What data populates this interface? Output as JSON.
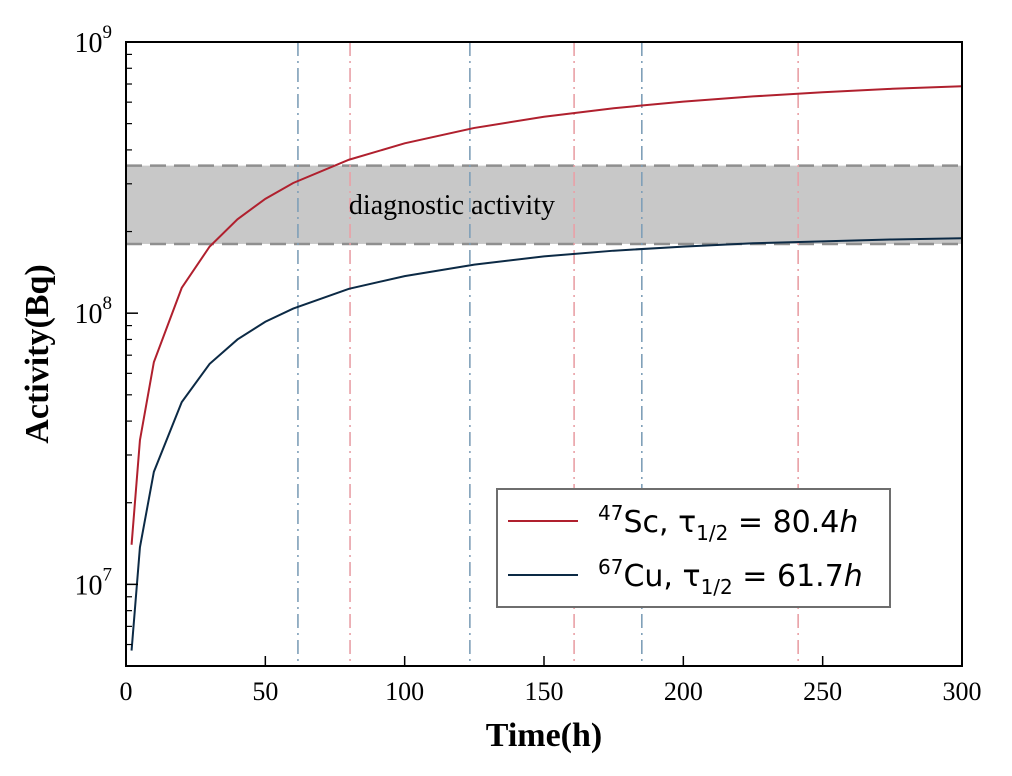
{
  "chart_data": {
    "type": "line",
    "xlabel": "Time(h)",
    "ylabel": "Activity(Bq)",
    "xlim": [
      0,
      300
    ],
    "ylim": [
      5000000,
      1000000000
    ],
    "y_scale": "log",
    "x_ticks": [
      0,
      50,
      100,
      150,
      200,
      250,
      300
    ],
    "x_tick_labels": [
      "0",
      "50",
      "100",
      "150",
      "200",
      "250",
      "300"
    ],
    "y_ticks": [
      {
        "value": 10000000,
        "base": "10",
        "exp": "7"
      },
      {
        "value": 100000000,
        "base": "10",
        "exp": "8"
      },
      {
        "value": 1000000000,
        "base": "10",
        "exp": "9"
      }
    ],
    "band": {
      "label": "diagnostic activity",
      "y_low": 180000000,
      "y_high": 350000000,
      "color": "#c8c8c8"
    },
    "series": [
      {
        "nuclide_mass": "47",
        "nuclide_symbol": "Sc",
        "half_life_label": "80.4",
        "half_life_h": 80.4,
        "color": "#b0202e",
        "x": [
          2,
          5,
          10,
          20,
          30,
          40,
          50,
          60,
          80,
          100,
          125,
          150,
          175,
          200,
          225,
          250,
          275,
          300
        ],
        "y": [
          14000000,
          34000000,
          66000000,
          124000000,
          176000000,
          222000000,
          264000000,
          302000000,
          368000000,
          423000000,
          482000000,
          530000000,
          570000000,
          603000000,
          630000000,
          653000000,
          672000000,
          687000000
        ]
      },
      {
        "nuclide_mass": "67",
        "nuclide_symbol": "Cu",
        "half_life_label": "61.7",
        "half_life_h": 61.7,
        "color": "#0c2a45",
        "x": [
          2,
          5,
          10,
          20,
          30,
          40,
          50,
          60,
          80,
          100,
          125,
          150,
          175,
          200,
          225,
          250,
          275,
          300
        ],
        "y": [
          5700000,
          13700000,
          26000000,
          47000000,
          65000000,
          80000000,
          93000000,
          104000000,
          123000000,
          137000000,
          151000000,
          162000000,
          170000000,
          176000000,
          181000000,
          184000000,
          187000000,
          189000000
        ]
      }
    ],
    "vertical_markers": [
      {
        "x": 61.7,
        "color": "#7f9fb8"
      },
      {
        "x": 123.4,
        "color": "#7f9fb8"
      },
      {
        "x": 185.1,
        "color": "#7f9fb8"
      },
      {
        "x": 80.4,
        "color": "#e9a0a6"
      },
      {
        "x": 160.8,
        "color": "#e9a0a6"
      },
      {
        "x": 241.2,
        "color": "#e9a0a6"
      }
    ],
    "legend": {
      "position": "lower-right",
      "tau_symbol": "τ",
      "tau_subscript": "1/2",
      "equals": "=",
      "unit": "h"
    },
    "grid": false
  }
}
